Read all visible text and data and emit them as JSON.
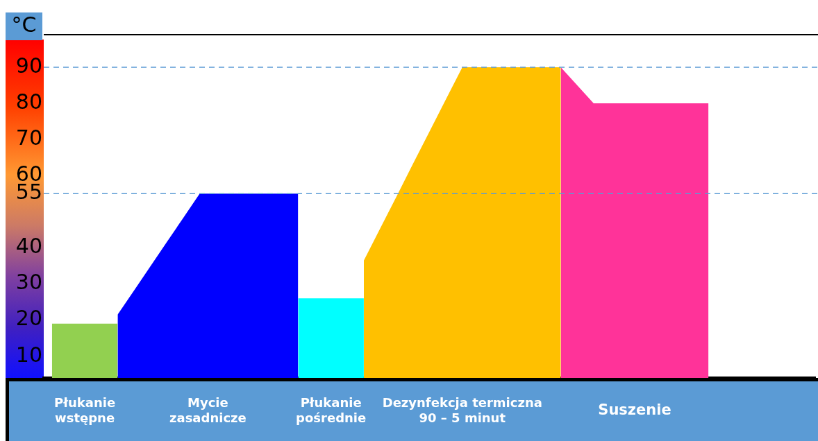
{
  "chart_data": {
    "type": "area",
    "ylabel": "°C",
    "ylim": [
      4,
      99
    ],
    "tick_labels": "y",
    "marker": "none",
    "yticks": [
      10,
      20,
      30,
      40,
      55,
      60,
      70,
      80,
      90
    ],
    "categories": [
      null,
      null,
      null,
      null,
      null,
      null,
      null,
      null,
      null,
      null,
      null,
      null,
      null,
      null,
      null,
      null,
      null,
      null,
      null,
      null,
      null,
      null,
      null,
      null,
      null,
      null,
      null,
      null,
      null,
      null,
      null,
      null,
      null,
      null,
      null,
      null,
      null,
      null,
      null,
      null,
      null,
      null,
      null,
      null,
      null,
      null,
      null
    ],
    "series": [
      {
        "name": "Płukanie\nwstępne",
        "color": "#92d050",
        "values": [
          19,
          19,
          19,
          19,
          19,
          null,
          null,
          null,
          null,
          null,
          null,
          null,
          null,
          null,
          null,
          null,
          null,
          null,
          null,
          null,
          null,
          null,
          null,
          null,
          null,
          null,
          null,
          null,
          null,
          null,
          null,
          null,
          null,
          null,
          null,
          null,
          null,
          null,
          null,
          null,
          null,
          null,
          null,
          null,
          null,
          null,
          null
        ]
      },
      {
        "name": "Mycie\nzasadnicze",
        "color": "#0000ff",
        "values": [
          null,
          null,
          null,
          null,
          21.5,
          28.2,
          34.9,
          41.6,
          48.3,
          55,
          55,
          55,
          55,
          55,
          55,
          55,
          null,
          null,
          null,
          null,
          null,
          null,
          null,
          null,
          null,
          null,
          null,
          null,
          null,
          null,
          null,
          null,
          null,
          null,
          null,
          null,
          null,
          null,
          null,
          null,
          null,
          null,
          null,
          null,
          null,
          null,
          null
        ]
      },
      {
        "name": "Płukanie\npośrednie",
        "color": "#00ffff",
        "values": [
          null,
          null,
          null,
          null,
          null,
          null,
          null,
          null,
          null,
          null,
          null,
          null,
          null,
          null,
          null,
          26,
          26,
          26,
          26,
          26,
          null,
          null,
          null,
          null,
          null,
          null,
          null,
          null,
          null,
          null,
          null,
          null,
          null,
          null,
          null,
          null,
          null,
          null,
          null,
          null,
          null,
          null,
          null,
          null,
          null,
          null,
          null
        ]
      },
      {
        "name": "Dezynfekcja termiczna\n90 – 5 minut",
        "color": "#ffc000",
        "values": [
          null,
          null,
          null,
          null,
          null,
          null,
          null,
          null,
          null,
          null,
          null,
          null,
          null,
          null,
          null,
          null,
          null,
          null,
          null,
          36.5,
          45.4,
          54.3,
          63.3,
          72.2,
          81.1,
          90,
          90,
          90,
          90,
          90,
          90,
          90,
          null,
          null,
          null,
          null,
          null,
          null,
          null,
          null,
          null,
          null,
          null,
          null,
          null,
          null,
          null
        ]
      },
      {
        "name": "Suszenie",
        "color": "#ff3399",
        "values": [
          null,
          null,
          null,
          null,
          null,
          null,
          null,
          null,
          null,
          null,
          null,
          null,
          null,
          null,
          null,
          null,
          null,
          null,
          null,
          null,
          null,
          null,
          null,
          null,
          null,
          null,
          null,
          null,
          null,
          null,
          null,
          90,
          85,
          80,
          80,
          80,
          80,
          80,
          80,
          80,
          80,
          null,
          null,
          null,
          null,
          null,
          null
        ]
      }
    ],
    "ref_lines": [
      {
        "axis": "y",
        "value": 90,
        "color": "#5b9bd5",
        "line_style": "dashed"
      },
      {
        "axis": "y",
        "value": 55,
        "color": "#5b9bd5",
        "line_style": "dashed"
      }
    ]
  }
}
